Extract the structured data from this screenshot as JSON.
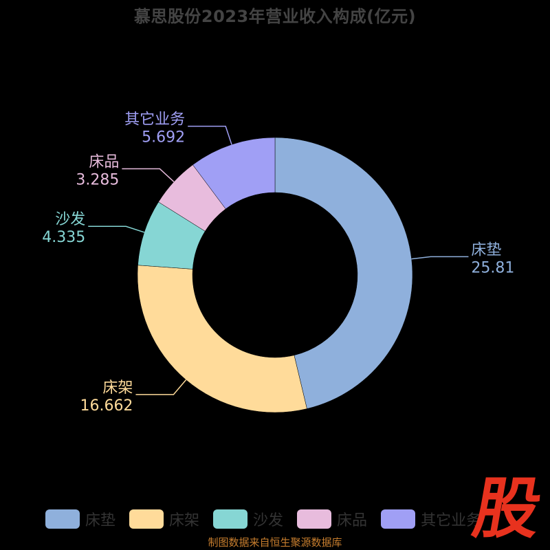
{
  "title": "慕思股份2023年营业收入构成(亿元)",
  "footer": "制图数据来自恒生聚源数据库",
  "watermark": "股",
  "chart_data": {
    "type": "pie",
    "donut": true,
    "title": "慕思股份2023年营业收入构成(亿元)",
    "start_angle_deg": 90,
    "direction": "clockwise",
    "legend_position": "bottom",
    "series": [
      {
        "name": "床垫",
        "value": 25.81,
        "color": "#8fb0dc"
      },
      {
        "name": "床架",
        "value": 16.662,
        "color": "#ffdb9a"
      },
      {
        "name": "沙发",
        "value": 4.335,
        "color": "#86d6d4"
      },
      {
        "name": "床品",
        "value": 3.285,
        "color": "#e8bcdd"
      },
      {
        "name": "其它业务",
        "value": 5.692,
        "color": "#a09ff5"
      }
    ]
  },
  "legend": {
    "items": [
      {
        "label": "床垫",
        "color": "#8fb0dc"
      },
      {
        "label": "床架",
        "color": "#ffdb9a"
      },
      {
        "label": "沙发",
        "color": "#86d6d4"
      },
      {
        "label": "床品",
        "color": "#e8bcdd"
      },
      {
        "label": "其它业务",
        "color": "#a09ff5"
      }
    ]
  }
}
